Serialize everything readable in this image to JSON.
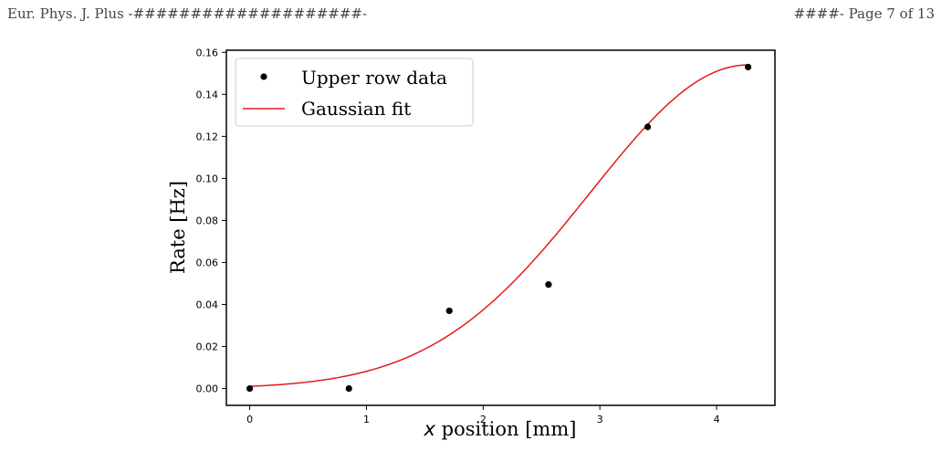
{
  "header": {
    "left": "Eur. Phys. J. Plus -####################-",
    "right": "####- Page 7 of 13"
  },
  "chart_data": {
    "type": "scatter",
    "xlabel_var": "x",
    "xlabel_rest": " position [mm]",
    "ylabel": "Rate [Hz]",
    "xlim": [
      -0.2,
      4.5
    ],
    "ylim": [
      -0.008,
      0.161
    ],
    "x_ticks": [
      0,
      1,
      2,
      3,
      4
    ],
    "y_ticks": [
      0.0,
      0.02,
      0.04,
      0.06,
      0.08,
      0.1,
      0.12,
      0.14,
      0.16
    ],
    "y_tick_labels": [
      "0.00",
      "0.02",
      "0.04",
      "0.06",
      "0.08",
      "0.10",
      "0.12",
      "0.14",
      "0.16"
    ],
    "legend_position": "upper-left",
    "series": [
      {
        "name": "Upper row data",
        "kind": "points",
        "color": "#000000",
        "x": [
          0.0,
          0.85,
          1.71,
          2.56,
          3.41,
          4.27
        ],
        "y": [
          0.0,
          0.0,
          0.037,
          0.0495,
          0.1245,
          0.153
        ]
      },
      {
        "name": "Gaussian fit",
        "kind": "line",
        "color": "#e41a1c",
        "model": {
          "amplitude": 0.154,
          "mean": 4.27,
          "sigma": 1.35
        },
        "x_range": [
          0.0,
          4.27
        ]
      }
    ]
  }
}
